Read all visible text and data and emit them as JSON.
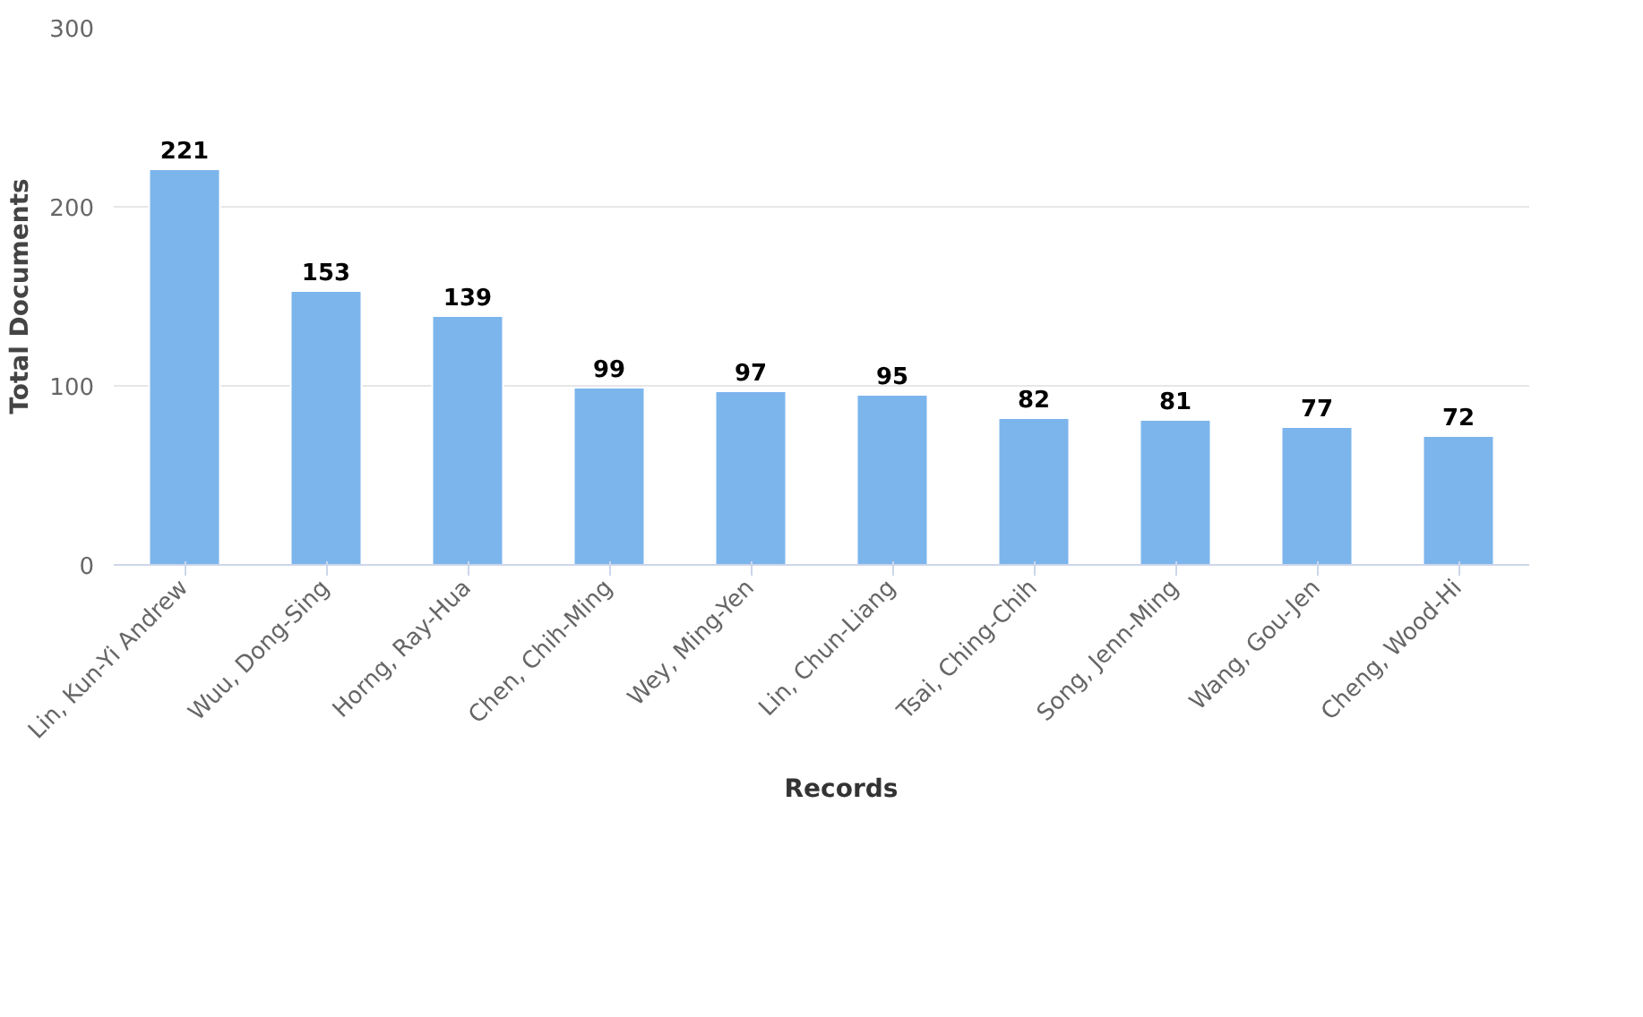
{
  "chart_data": {
    "type": "bar",
    "ylabel": "Total Documents",
    "categories": [
      "Lin, Kun-Yi Andrew",
      "Wuu, Dong-Sing",
      "Horng, Ray-Hua",
      "Chen, Chih-Ming",
      "Wey, Ming-Yen",
      "Lin, Chun-Liang",
      "Tsai, Ching-Chih",
      "Song, Jenn-Ming",
      "Wang, Gou-Jen",
      "Cheng, Wood-Hi"
    ],
    "series": [
      {
        "name": "Records",
        "color": "#7cb5ec",
        "values": [
          221,
          153,
          139,
          99,
          97,
          95,
          82,
          81,
          77,
          72
        ]
      }
    ],
    "ylim": [
      0,
      300
    ],
    "yticks": [
      0,
      100,
      200,
      300
    ],
    "grid": "y",
    "legend": "bottom",
    "data_labels": true
  }
}
